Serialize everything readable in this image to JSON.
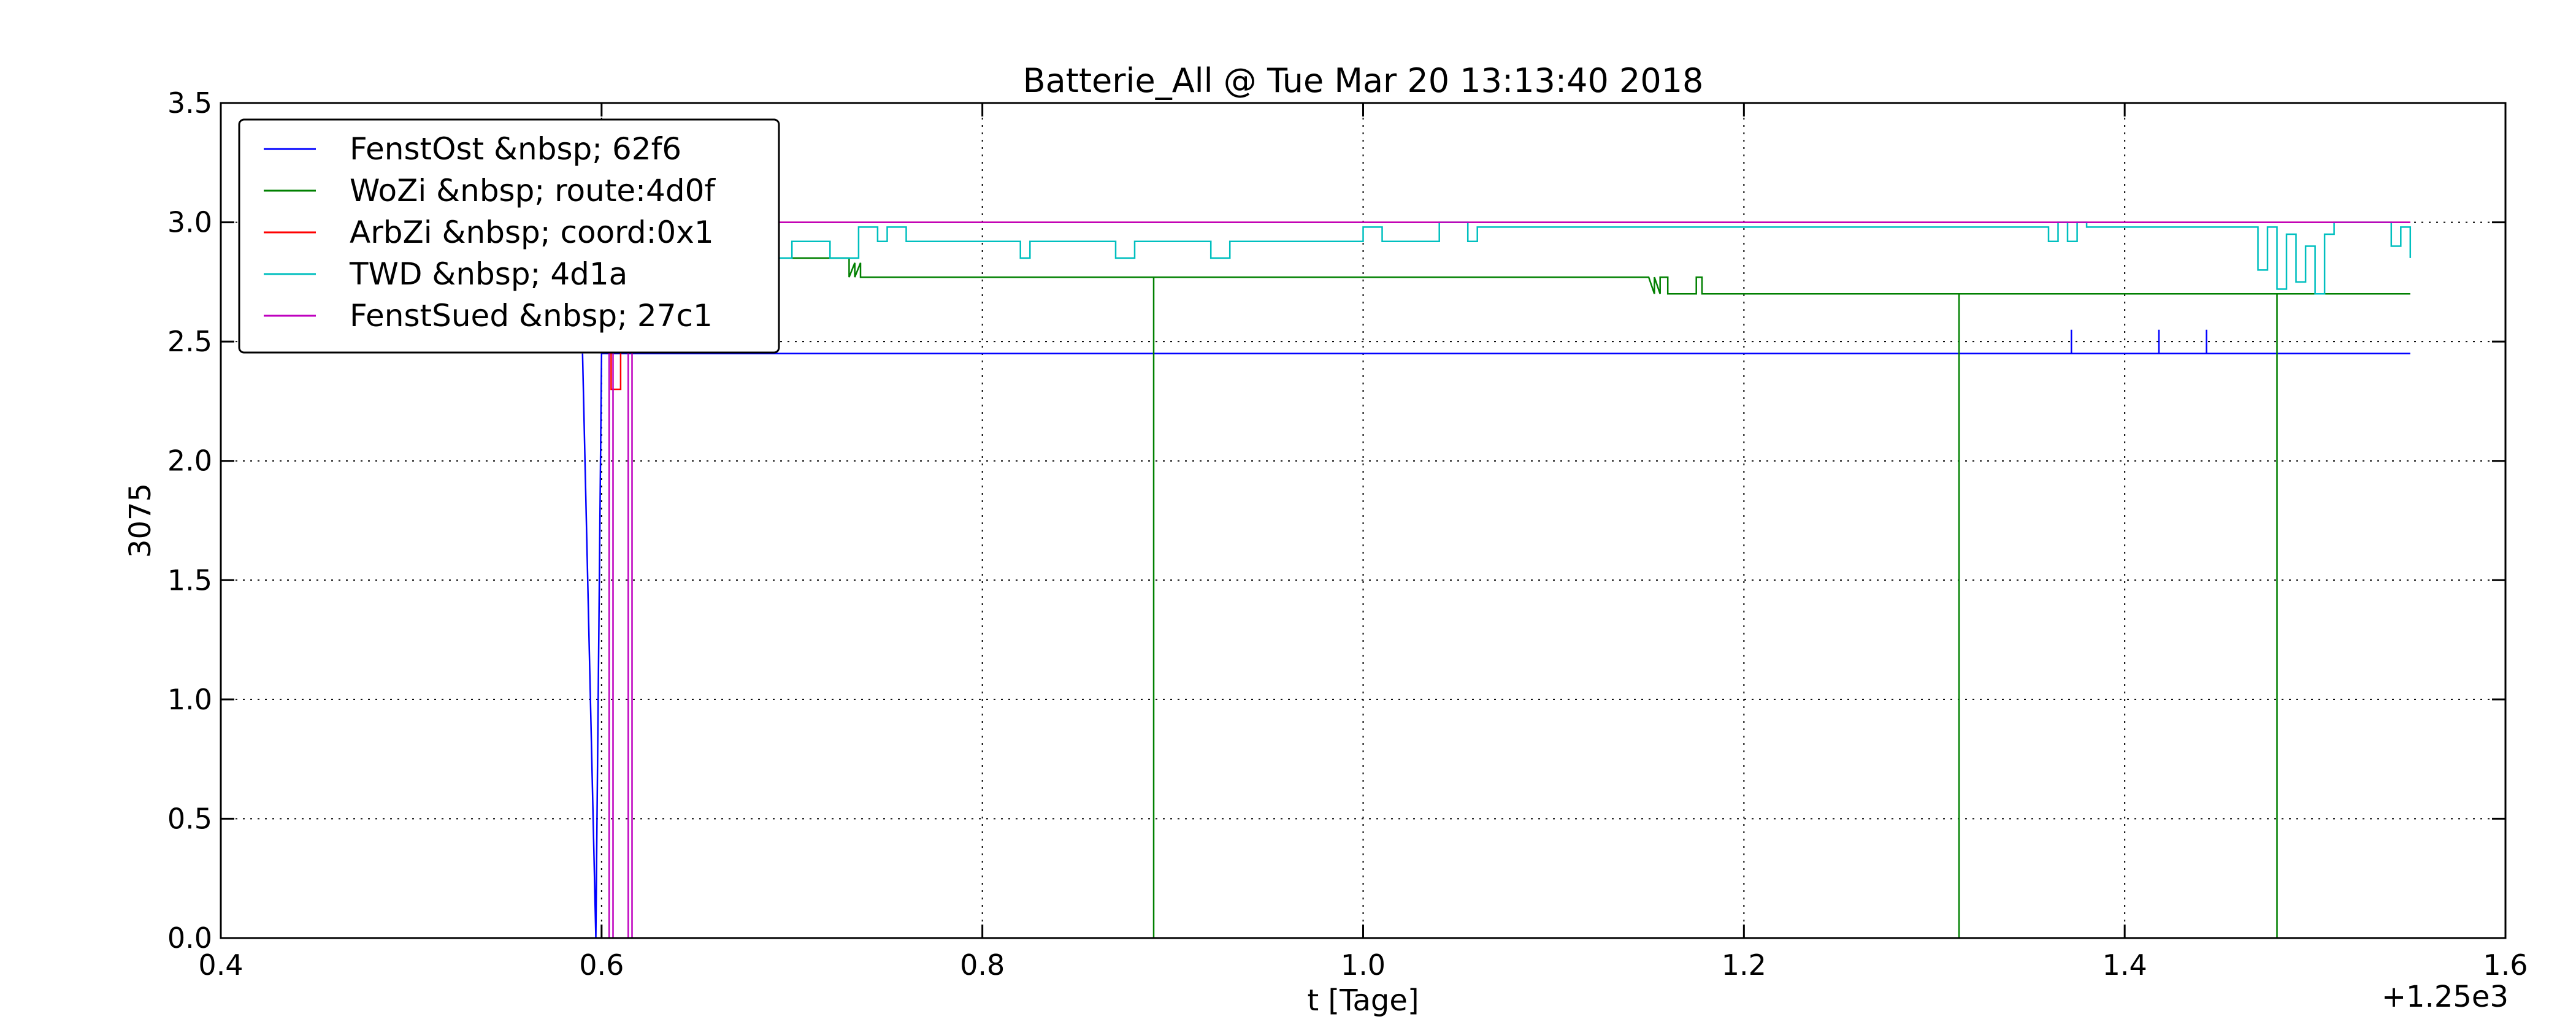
{
  "chart_data": {
    "type": "line",
    "title": "Batterie_All @ Tue Mar 20 13:13:40 2018",
    "xlabel": "t [Tage]",
    "ylabel": "3075",
    "x_offset_label": "+1.25e3",
    "xlim": [
      0.4,
      1.6
    ],
    "ylim": [
      0.0,
      3.5
    ],
    "x_ticks": [
      0.4,
      0.6,
      0.8,
      1.0,
      1.2,
      1.4,
      1.6
    ],
    "y_ticks": [
      0.0,
      0.5,
      1.0,
      1.5,
      2.0,
      2.5,
      3.0,
      3.5
    ],
    "x_tick_labels": [
      "0.4",
      "0.6",
      "0.8",
      "1.0",
      "1.2",
      "1.4",
      "1.6"
    ],
    "y_tick_labels": [
      "0.0",
      "0.5",
      "1.0",
      "1.5",
      "2.0",
      "2.5",
      "3.0",
      "3.5"
    ],
    "grid": true,
    "legend_position": "top-left",
    "series": [
      {
        "name": "FenstOst &nbsp; 62f6",
        "color": "#0000ff",
        "x": [
          0.59,
          0.597,
          0.6,
          0.62,
          1.372,
          1.372,
          1.372,
          1.418,
          1.418,
          1.418,
          1.443,
          1.443,
          1.443,
          1.55
        ],
        "y": [
          2.45,
          0.0,
          2.45,
          2.45,
          2.45,
          2.55,
          2.45,
          2.45,
          2.55,
          2.45,
          2.45,
          2.55,
          2.45,
          2.45
        ]
      },
      {
        "name": "WoZi &nbsp; route:4d0f",
        "color": "#008000",
        "x": [
          0.7,
          0.73,
          0.73,
          0.733,
          0.733,
          0.736,
          0.736,
          0.745,
          0.745,
          0.89,
          0.89,
          0.89,
          1.15,
          1.153,
          1.153,
          1.156,
          1.156,
          1.16,
          1.16,
          1.175,
          1.175,
          1.178,
          1.178,
          1.313,
          1.313,
          1.313,
          1.48,
          1.48,
          1.48,
          1.55
        ],
        "y": [
          2.85,
          2.85,
          2.77,
          2.83,
          2.77,
          2.83,
          2.77,
          2.77,
          2.77,
          2.77,
          0.0,
          2.77,
          2.77,
          2.7,
          2.77,
          2.7,
          2.77,
          2.77,
          2.7,
          2.7,
          2.77,
          2.77,
          2.7,
          2.7,
          0.0,
          2.7,
          2.7,
          0.0,
          2.7,
          2.7
        ]
      },
      {
        "name": "ArbZi &nbsp; coord:0x1",
        "color": "#ff0000",
        "x": [
          0.6,
          0.605,
          0.605,
          0.61,
          0.61,
          1.55
        ],
        "y": [
          3.0,
          3.0,
          2.3,
          2.3,
          3.0,
          3.0
        ]
      },
      {
        "name": "TWD &nbsp; 4d1a",
        "color": "#00bfbf",
        "x": [
          0.6,
          0.7,
          0.7,
          0.72,
          0.72,
          0.735,
          0.735,
          0.745,
          0.745,
          0.75,
          0.75,
          0.76,
          0.76,
          0.78,
          0.78,
          0.82,
          0.82,
          0.825,
          0.825,
          0.87,
          0.87,
          0.88,
          0.88,
          0.92,
          0.92,
          0.93,
          0.93,
          1.0,
          1.0,
          1.01,
          1.01,
          1.04,
          1.04,
          1.055,
          1.055,
          1.06,
          1.06,
          1.36,
          1.36,
          1.365,
          1.365,
          1.37,
          1.37,
          1.375,
          1.375,
          1.38,
          1.38,
          1.47,
          1.47,
          1.475,
          1.475,
          1.48,
          1.48,
          1.485,
          1.485,
          1.49,
          1.49,
          1.495,
          1.495,
          1.5,
          1.5,
          1.505,
          1.505,
          1.51,
          1.51,
          1.54,
          1.54,
          1.545,
          1.545,
          1.55,
          1.55
        ],
        "y": [
          2.85,
          2.85,
          2.92,
          2.92,
          2.85,
          2.85,
          2.98,
          2.98,
          2.92,
          2.92,
          2.98,
          2.98,
          2.92,
          2.92,
          2.92,
          2.92,
          2.85,
          2.85,
          2.92,
          2.92,
          2.85,
          2.85,
          2.92,
          2.92,
          2.85,
          2.85,
          2.92,
          2.92,
          2.98,
          2.98,
          2.92,
          2.92,
          3.0,
          3.0,
          2.92,
          2.92,
          2.98,
          2.98,
          2.92,
          2.92,
          3.0,
          3.0,
          2.92,
          2.92,
          3.0,
          3.0,
          2.98,
          2.98,
          2.8,
          2.8,
          2.98,
          2.98,
          2.72,
          2.72,
          2.95,
          2.95,
          2.75,
          2.75,
          2.9,
          2.9,
          2.7,
          2.7,
          2.95,
          2.95,
          3.0,
          3.0,
          2.9,
          2.9,
          2.98,
          2.98,
          2.85
        ]
      },
      {
        "name": "FenstSued &nbsp; 27c1",
        "color": "#bf00bf",
        "x": [
          0.6,
          0.604,
          0.604,
          0.606,
          0.606,
          0.614,
          0.614,
          0.616,
          0.616,
          1.55
        ],
        "y": [
          3.0,
          3.0,
          0.0,
          0.0,
          3.0,
          3.0,
          0.0,
          0.0,
          3.0,
          3.0
        ]
      }
    ]
  }
}
